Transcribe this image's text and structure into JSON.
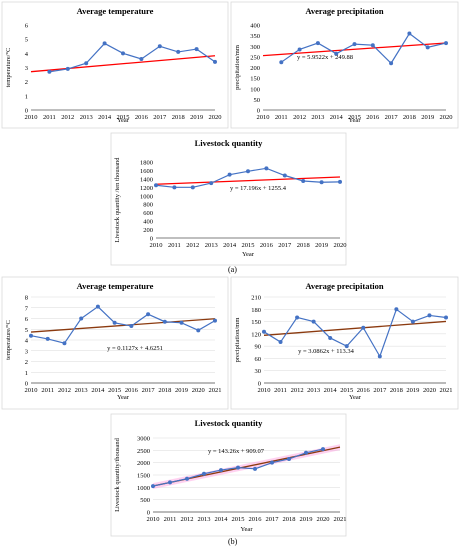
{
  "figure": {
    "label_a": "(a)",
    "label_b": "(b)"
  },
  "colors": {
    "data_line": "#4472c4",
    "marker": "#4472c4",
    "trend_a": "#ff0000",
    "trend_b": "#8b3a0f",
    "band_b": "#ff99dd",
    "frame": "#d9d9d9",
    "grid": "#d9d9d9"
  },
  "chart_data": [
    {
      "type": "line",
      "panel": "a",
      "title": "Average temperature",
      "xlabel": "Year",
      "ylabel": "temperature/°C",
      "xlim": [
        2010,
        2020
      ],
      "xticks": [
        2010,
        2011,
        2012,
        2013,
        2014,
        2015,
        2016,
        2017,
        2018,
        2019,
        2020
      ],
      "ylim": [
        0,
        6
      ],
      "yticks": [
        0,
        1,
        2,
        3,
        4,
        5,
        6
      ],
      "series": [
        {
          "x": [
            2011,
            2012,
            2013,
            2014,
            2015,
            2016,
            2017,
            2018,
            2019,
            2020
          ],
          "y": [
            2.7,
            2.9,
            3.3,
            4.7,
            4.0,
            3.6,
            4.5,
            4.1,
            4.3,
            3.4
          ]
        }
      ],
      "trendline": {
        "equation": "y = 0.1127x + 2.5914",
        "slope": 0.1127,
        "intercept": 2.5914
      },
      "grid": false
    },
    {
      "type": "line",
      "panel": "a",
      "title": "Average precipitation",
      "xlabel": "Year",
      "ylabel": "precipitation/mm",
      "xlim": [
        2010,
        2020
      ],
      "xticks": [
        2010,
        2011,
        2012,
        2013,
        2014,
        2015,
        2016,
        2017,
        2018,
        2019,
        2020
      ],
      "ylim": [
        0,
        400
      ],
      "yticks": [
        0,
        50,
        100,
        150,
        200,
        250,
        300,
        350,
        400
      ],
      "series": [
        {
          "x": [
            2011,
            2012,
            2013,
            2014,
            2015,
            2016,
            2017,
            2018,
            2019,
            2020
          ],
          "y": [
            225,
            285,
            315,
            265,
            310,
            305,
            220,
            360,
            295,
            315
          ]
        }
      ],
      "trendline": {
        "equation": "y = 5.9522x + 249.88",
        "slope": 5.9522,
        "intercept": 249.88
      },
      "grid": false
    },
    {
      "type": "line",
      "panel": "a",
      "title": "Livestock quantity",
      "xlabel": "Year",
      "ylabel": "Livestock quantity /ten thousand",
      "xlim": [
        2010,
        2020
      ],
      "xticks": [
        2010,
        2011,
        2012,
        2013,
        2014,
        2015,
        2016,
        2017,
        2018,
        2019,
        2020
      ],
      "ylim": [
        0,
        1800
      ],
      "yticks": [
        0,
        200,
        400,
        600,
        800,
        1000,
        1200,
        1400,
        1600,
        1800
      ],
      "series": [
        {
          "x": [
            2010,
            2011,
            2012,
            2013,
            2014,
            2015,
            2016,
            2017,
            2018,
            2019,
            2020
          ],
          "y": [
            1250,
            1200,
            1200,
            1300,
            1500,
            1580,
            1650,
            1480,
            1350,
            1320,
            1330
          ]
        }
      ],
      "trendline": {
        "equation": "y = 17.196x + 1255.4",
        "slope": 17.196,
        "intercept": 1255.4
      },
      "grid": false
    },
    {
      "type": "line",
      "panel": "b",
      "title": "Average temperature",
      "xlabel": "Year",
      "ylabel": "temperature/°C",
      "xlim": [
        2010,
        2021
      ],
      "xticks": [
        2010,
        2011,
        2012,
        2013,
        2014,
        2015,
        2016,
        2017,
        2018,
        2019,
        2020,
        2021
      ],
      "ylim": [
        0,
        8
      ],
      "yticks": [
        0,
        1,
        2,
        3,
        4,
        5,
        6,
        7,
        8
      ],
      "series": [
        {
          "x": [
            2010,
            2011,
            2012,
            2013,
            2014,
            2015,
            2016,
            2017,
            2018,
            2019,
            2020,
            2021
          ],
          "y": [
            4.4,
            4.1,
            3.7,
            6.0,
            7.1,
            5.6,
            5.3,
            6.4,
            5.7,
            5.6,
            4.9,
            5.8
          ]
        }
      ],
      "trendline": {
        "equation": "y = 0.1127x + 4.6251",
        "slope": 0.1127,
        "intercept": 4.6251
      },
      "grid": true
    },
    {
      "type": "line",
      "panel": "b",
      "title": "Average precipitation",
      "xlabel": "Year",
      "ylabel": "precipitation/mm",
      "xlim": [
        2010,
        2021
      ],
      "xticks": [
        2010,
        2011,
        2012,
        2013,
        2014,
        2015,
        2016,
        2017,
        2018,
        2019,
        2020,
        2021
      ],
      "ylim": [
        0,
        210
      ],
      "yticks": [
        0,
        30,
        60,
        90,
        120,
        150,
        180,
        210
      ],
      "series": [
        {
          "x": [
            2010,
            2011,
            2012,
            2013,
            2014,
            2015,
            2016,
            2017,
            2018,
            2019,
            2020,
            2021
          ],
          "y": [
            125,
            100,
            160,
            150,
            110,
            90,
            135,
            65,
            180,
            150,
            165,
            160
          ]
        }
      ],
      "trendline": {
        "equation": "y = 3.0862x + 113.34",
        "slope": 3.0862,
        "intercept": 113.34
      },
      "grid": true
    },
    {
      "type": "line",
      "panel": "b",
      "title": "Livestock quantity",
      "xlabel": "Year",
      "ylabel": "Livestock quantity/thousand",
      "xlim": [
        2010,
        2021
      ],
      "xticks": [
        2010,
        2011,
        2012,
        2013,
        2014,
        2015,
        2016,
        2017,
        2018,
        2019,
        2020,
        2021
      ],
      "ylim": [
        0,
        3000
      ],
      "yticks": [
        0,
        500,
        1000,
        1500,
        2000,
        2500,
        3000
      ],
      "series": [
        {
          "x": [
            2010,
            2011,
            2012,
            2013,
            2014,
            2015,
            2016,
            2017,
            2018,
            2019,
            2020
          ],
          "y": [
            1050,
            1200,
            1350,
            1550,
            1700,
            1800,
            1750,
            2000,
            2150,
            2400,
            2550
          ]
        }
      ],
      "trendline": {
        "equation": "y = 143.26x + 909.07",
        "slope": 143.26,
        "intercept": 909.07
      },
      "grid": true
    }
  ]
}
